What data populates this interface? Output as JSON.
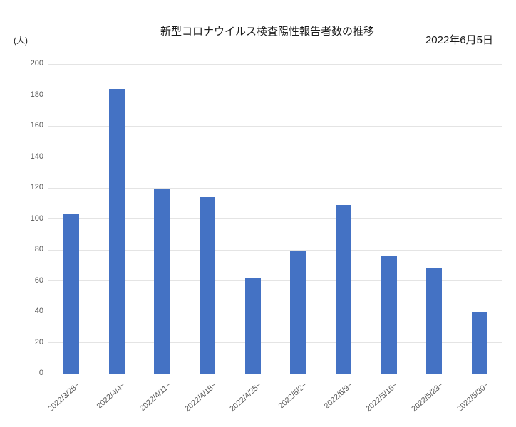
{
  "chart": {
    "title": "新型コロナウイルス検査陽性報告者数の推移",
    "date_label": "2022年6月5日",
    "unit_label": "(人)"
  },
  "chart_data": {
    "type": "bar",
    "title": "新型コロナウイルス検査陽性報告者数の推移",
    "subtitle": "2022年6月5日",
    "ylabel": "(人)",
    "xlabel": "",
    "categories": [
      "2022/3/28~",
      "2022/4/4~",
      "2022/4/11~",
      "2022/4/18~",
      "2022/4/25~",
      "2022/5/2~",
      "2022/5/9~",
      "2022/5/16~",
      "2022/5/23~",
      "2022/5/30~"
    ],
    "values": [
      103,
      184,
      119,
      114,
      62,
      79,
      109,
      76,
      68,
      40
    ],
    "ylim": [
      0,
      200
    ],
    "ytick_step": 20,
    "yticks": [
      0,
      20,
      40,
      60,
      80,
      100,
      120,
      140,
      160,
      180,
      200
    ],
    "grid": "horizontal",
    "legend": "none",
    "bar_color": "#4472C4",
    "gridline_color": "#E4E4E4",
    "baseline_color": "#D9D9D9",
    "axis_text_color": "#595959"
  }
}
